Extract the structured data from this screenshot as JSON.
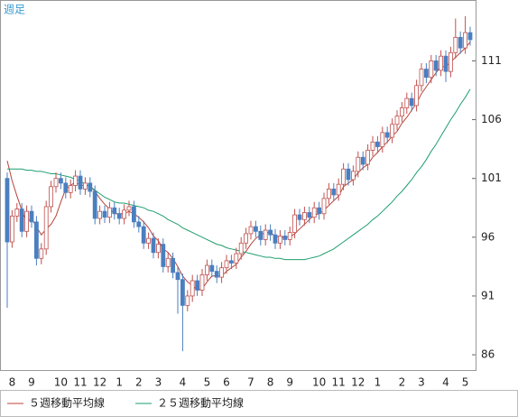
{
  "chart_data": {
    "type": "candlestick",
    "label": "週足",
    "categories": [
      null,
      "8",
      null,
      null,
      null,
      "9",
      null,
      null,
      null,
      null,
      null,
      "10",
      null,
      null,
      null,
      "11",
      null,
      null,
      null,
      "12",
      null,
      null,
      null,
      "1",
      null,
      null,
      null,
      "2",
      null,
      null,
      null,
      "3",
      null,
      null,
      null,
      null,
      "4",
      null,
      null,
      null,
      null,
      "5",
      null,
      null,
      null,
      "6",
      null,
      null,
      null,
      null,
      "7",
      null,
      null,
      null,
      "8",
      null,
      null,
      null,
      "9",
      null,
      null,
      null,
      null,
      null,
      "10",
      null,
      null,
      null,
      "11",
      null,
      null,
      null,
      "12",
      null,
      null,
      null,
      "1",
      null,
      null,
      null,
      null,
      "2",
      null,
      null,
      null,
      "3",
      null,
      null,
      null,
      null,
      "4",
      null,
      null,
      null,
      "5",
      null
    ],
    "open": [
      101.0,
      95.6,
      97.8,
      98.4,
      96.5,
      98.2,
      97.3,
      94.2,
      95.0,
      98.6,
      100.3,
      101.0,
      100.6,
      99.8,
      100.4,
      101.2,
      100.1,
      100.6,
      99.9,
      97.6,
      98.2,
      97.7,
      98.5,
      98.0,
      97.6,
      98.3,
      98.6,
      97.3,
      96.9,
      95.5,
      95.9,
      94.7,
      95.4,
      93.5,
      94.2,
      93.0,
      92.4,
      90.2,
      91.0,
      92.3,
      91.5,
      92.8,
      93.6,
      93.1,
      92.6,
      93.4,
      94.0,
      93.8,
      94.6,
      95.5,
      96.3,
      96.9,
      96.5,
      95.8,
      96.6,
      96.2,
      95.5,
      96.1,
      95.8,
      96.4,
      97.9,
      97.5,
      98.1,
      97.7,
      98.5,
      98.0,
      99.3,
      100.1,
      99.6,
      100.5,
      101.8,
      100.9,
      101.6,
      102.8,
      102.2,
      103.4,
      104.1,
      103.7,
      104.9,
      104.5,
      105.6,
      106.3,
      107.0,
      107.8,
      107.2,
      108.9,
      110.3,
      109.6,
      111.0,
      110.2,
      111.4,
      110.1,
      111.7,
      113.0,
      112.1,
      113.4
    ],
    "high": [
      101.5,
      98.3,
      98.9,
      98.9,
      98.7,
      98.7,
      97.8,
      95.5,
      99.1,
      100.8,
      101.5,
      101.5,
      101.1,
      100.9,
      101.7,
      101.7,
      101.1,
      101.1,
      100.4,
      98.7,
      98.7,
      99.0,
      99.0,
      98.5,
      98.8,
      99.1,
      99.1,
      97.8,
      97.4,
      96.4,
      96.4,
      95.9,
      95.9,
      94.7,
      94.7,
      93.5,
      92.9,
      91.5,
      92.8,
      92.8,
      93.3,
      94.1,
      94.1,
      93.6,
      93.9,
      94.5,
      94.5,
      95.1,
      96.0,
      96.8,
      97.4,
      97.4,
      97.0,
      97.1,
      97.1,
      96.7,
      96.6,
      96.6,
      96.9,
      98.4,
      98.4,
      98.6,
      98.6,
      99.0,
      99.0,
      99.8,
      100.6,
      100.6,
      101.0,
      102.3,
      102.3,
      102.1,
      103.3,
      103.3,
      103.9,
      104.6,
      104.6,
      105.4,
      105.4,
      106.1,
      106.8,
      107.5,
      108.3,
      108.3,
      109.4,
      110.8,
      110.8,
      111.5,
      111.5,
      111.9,
      111.9,
      112.2,
      114.6,
      113.5,
      114.8,
      113.9
    ],
    "low": [
      90.0,
      95.1,
      97.3,
      96.0,
      96.0,
      96.8,
      93.6,
      93.7,
      94.5,
      98.1,
      99.8,
      100.1,
      99.3,
      99.3,
      99.9,
      99.6,
      99.6,
      99.4,
      97.1,
      97.1,
      97.2,
      97.2,
      97.5,
      97.1,
      97.1,
      97.8,
      96.8,
      96.4,
      95.0,
      95.0,
      94.2,
      94.2,
      93.0,
      93.0,
      92.5,
      89.5,
      86.3,
      89.7,
      90.5,
      91.0,
      91.0,
      92.3,
      92.6,
      92.1,
      92.1,
      92.9,
      93.3,
      93.3,
      94.1,
      95.0,
      95.8,
      96.0,
      95.3,
      95.3,
      95.7,
      95.0,
      95.0,
      95.3,
      95.3,
      95.9,
      97.0,
      97.0,
      97.2,
      97.2,
      97.5,
      97.5,
      98.8,
      99.1,
      99.1,
      100.0,
      100.4,
      100.4,
      101.1,
      101.7,
      101.7,
      102.9,
      103.2,
      103.2,
      104.0,
      104.0,
      105.1,
      105.8,
      106.5,
      106.7,
      106.7,
      108.4,
      109.1,
      109.1,
      109.7,
      109.7,
      109.2,
      109.6,
      111.2,
      111.6,
      111.6,
      112.3
    ],
    "close": [
      95.6,
      97.8,
      98.4,
      96.5,
      98.2,
      97.3,
      94.2,
      95.0,
      98.6,
      100.3,
      101.0,
      100.6,
      99.8,
      100.4,
      101.2,
      100.1,
      100.6,
      99.9,
      97.6,
      98.2,
      97.7,
      98.5,
      98.0,
      97.6,
      98.3,
      98.6,
      97.3,
      96.9,
      95.5,
      95.9,
      94.7,
      95.4,
      93.5,
      94.2,
      93.0,
      92.4,
      90.2,
      91.0,
      92.3,
      91.5,
      92.8,
      93.6,
      93.1,
      92.6,
      93.4,
      94.0,
      93.8,
      94.6,
      95.5,
      96.3,
      96.9,
      96.5,
      95.8,
      96.6,
      96.2,
      95.5,
      96.1,
      95.8,
      96.4,
      97.9,
      97.5,
      98.1,
      97.7,
      98.5,
      98.0,
      99.3,
      100.1,
      99.6,
      100.5,
      101.8,
      100.9,
      101.6,
      102.8,
      102.2,
      103.4,
      104.1,
      103.7,
      104.9,
      104.5,
      105.6,
      106.3,
      107.0,
      107.8,
      107.2,
      108.9,
      110.3,
      109.6,
      111.0,
      110.2,
      111.4,
      110.1,
      111.7,
      113.0,
      112.1,
      113.4,
      112.8
    ],
    "up_color": "#c0504d",
    "down_color": "#4a7fc0",
    "series": [
      {
        "name": "５週移動平均線",
        "color": "#b8443a",
        "values": [
          102.5,
          100.8,
          99.5,
          98.3,
          97.3,
          97.6,
          96.9,
          96.2,
          96.7,
          97.1,
          97.8,
          99.0,
          100.1,
          100.4,
          100.7,
          100.4,
          100.4,
          100.4,
          99.9,
          99.3,
          98.8,
          98.4,
          98.0,
          98.0,
          98.0,
          98.2,
          98.0,
          97.7,
          97.3,
          96.8,
          96.1,
          95.7,
          95.0,
          94.7,
          94.2,
          93.5,
          92.7,
          92.2,
          91.9,
          91.5,
          91.6,
          92.2,
          92.7,
          92.7,
          92.7,
          93.1,
          93.4,
          93.7,
          94.3,
          94.8,
          95.4,
          95.9,
          96.2,
          96.4,
          96.4,
          96.1,
          96.0,
          96.0,
          96.0,
          96.3,
          96.7,
          97.1,
          97.5,
          97.9,
          98.0,
          98.3,
          98.7,
          99.1,
          99.5,
          100.3,
          100.6,
          100.9,
          101.5,
          101.9,
          102.2,
          102.8,
          103.2,
          103.7,
          104.1,
          104.6,
          105.0,
          105.7,
          106.2,
          106.8,
          107.4,
          108.2,
          108.8,
          109.4,
          110.0,
          110.5,
          110.5,
          110.9,
          111.3,
          111.7,
          112.1,
          112.6
        ]
      },
      {
        "name": "２５週移動平均線",
        "color": "#1f9e6e",
        "values": [
          101.8,
          101.8,
          101.8,
          101.8,
          101.7,
          101.7,
          101.6,
          101.6,
          101.5,
          101.4,
          101.4,
          101.3,
          101.2,
          101.1,
          100.9,
          100.8,
          100.5,
          100.3,
          100.0,
          99.7,
          99.4,
          99.2,
          99.0,
          98.9,
          98.9,
          98.8,
          98.7,
          98.6,
          98.5,
          98.3,
          98.2,
          98.0,
          97.8,
          97.5,
          97.3,
          97.1,
          96.8,
          96.6,
          96.4,
          96.2,
          96.0,
          95.8,
          95.6,
          95.4,
          95.3,
          95.1,
          95.0,
          94.9,
          94.8,
          94.7,
          94.6,
          94.5,
          94.4,
          94.3,
          94.3,
          94.2,
          94.2,
          94.1,
          94.1,
          94.1,
          94.1,
          94.1,
          94.2,
          94.3,
          94.4,
          94.6,
          94.8,
          95.0,
          95.3,
          95.6,
          95.9,
          96.2,
          96.5,
          96.8,
          97.1,
          97.5,
          97.8,
          98.2,
          98.6,
          99.0,
          99.5,
          99.9,
          100.4,
          100.9,
          101.5,
          102.0,
          102.6,
          103.3,
          103.9,
          104.6,
          105.3,
          106.0,
          106.6,
          107.3,
          107.9,
          108.6
        ]
      }
    ],
    "ylim": [
      84.7,
      116.1
    ],
    "yticks": [
      86,
      91,
      96,
      101,
      106,
      111
    ]
  }
}
